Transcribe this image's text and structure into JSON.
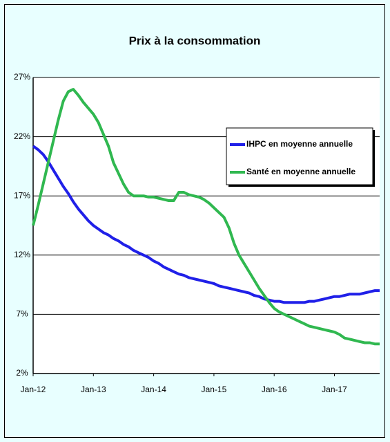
{
  "chart_data": {
    "type": "line",
    "title": "Prix à la consommation",
    "categories": [
      "Jan-12",
      null,
      null,
      null,
      null,
      null,
      null,
      null,
      null,
      null,
      null,
      null,
      "Jan-13",
      null,
      null,
      null,
      null,
      null,
      null,
      null,
      null,
      null,
      null,
      null,
      "Jan-14",
      null,
      null,
      null,
      null,
      null,
      null,
      null,
      null,
      null,
      null,
      null,
      "Jan-15",
      null,
      null,
      null,
      null,
      null,
      null,
      null,
      null,
      null,
      null,
      null,
      "Jan-16",
      null,
      null,
      null,
      null,
      null,
      null,
      null,
      null,
      null,
      null,
      null,
      "Jan-17",
      null,
      null,
      null,
      null,
      null,
      null,
      null,
      null,
      null
    ],
    "series": [
      {
        "name": "IHPC en moyenne annuelle",
        "color": "#2020e8",
        "values": [
          21.2,
          20.9,
          20.5,
          19.9,
          19.2,
          18.5,
          17.8,
          17.2,
          16.5,
          15.9,
          15.4,
          14.9,
          14.5,
          14.2,
          13.9,
          13.7,
          13.4,
          13.2,
          12.9,
          12.7,
          12.4,
          12.2,
          12.0,
          11.8,
          11.5,
          11.3,
          11.0,
          10.8,
          10.6,
          10.4,
          10.3,
          10.1,
          10.0,
          9.9,
          9.8,
          9.7,
          9.6,
          9.4,
          9.3,
          9.2,
          9.1,
          9.0,
          8.9,
          8.8,
          8.6,
          8.5,
          8.3,
          8.2,
          8.1,
          8.1,
          8.0,
          8.0,
          8.0,
          8.0,
          8.0,
          8.1,
          8.1,
          8.2,
          8.3,
          8.4,
          8.5,
          8.5,
          8.6,
          8.7,
          8.7,
          8.7,
          8.8,
          8.9,
          9.0,
          9.0
        ]
      },
      {
        "name": "Santé en moyenne annuelle",
        "color": "#30b850",
        "values": [
          14.5,
          16.2,
          18.0,
          19.8,
          21.6,
          23.4,
          25.0,
          25.8,
          26.0,
          25.5,
          24.9,
          24.4,
          23.9,
          23.2,
          22.2,
          21.2,
          19.8,
          18.9,
          18.0,
          17.3,
          17.0,
          17.0,
          17.0,
          16.9,
          16.9,
          16.8,
          16.7,
          16.6,
          16.6,
          17.3,
          17.3,
          17.1,
          17.0,
          16.9,
          16.7,
          16.4,
          16.0,
          15.6,
          15.2,
          14.3,
          13.0,
          12.0,
          11.3,
          10.6,
          9.9,
          9.2,
          8.6,
          8.0,
          7.5,
          7.2,
          7.0,
          6.8,
          6.6,
          6.4,
          6.2,
          6.0,
          5.9,
          5.8,
          5.7,
          5.6,
          5.5,
          5.3,
          5.0,
          4.9,
          4.8,
          4.7,
          4.6,
          4.6,
          4.5,
          4.5
        ]
      }
    ],
    "ylim": [
      2,
      27
    ],
    "yticks": [
      {
        "value": 2,
        "label": "2%"
      },
      {
        "value": 7,
        "label": "7%"
      },
      {
        "value": 12,
        "label": "12%"
      },
      {
        "value": 17,
        "label": "17%"
      },
      {
        "value": 22,
        "label": "22%"
      },
      {
        "value": 27,
        "label": "27%"
      }
    ],
    "grid": true
  }
}
